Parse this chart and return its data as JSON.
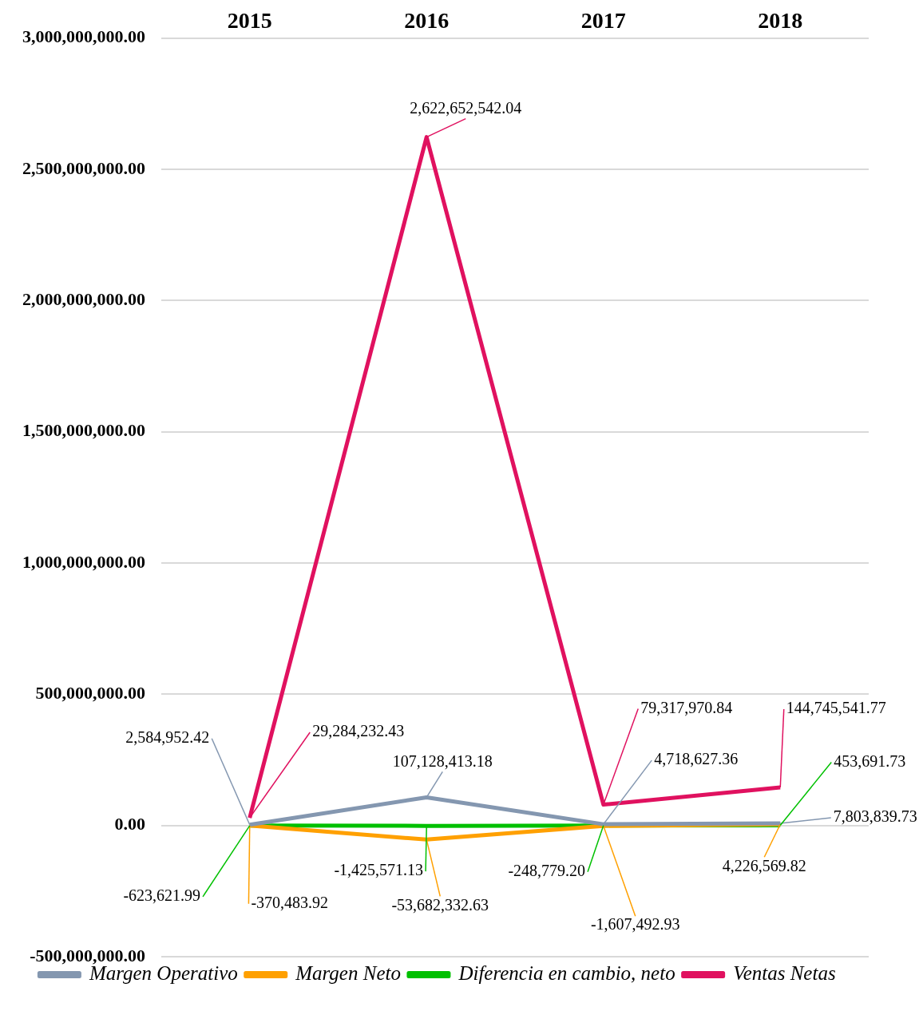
{
  "chart_data": {
    "type": "line",
    "categories": [
      "2015",
      "2016",
      "2017",
      "2018"
    ],
    "series": [
      {
        "name": "Margen Operativo",
        "color": "#8497b0",
        "values": [
          2584952.42,
          107128413.18,
          4718627.36,
          7803839.73
        ],
        "value_labels": [
          "2,584,952.42",
          "107,128,413.18",
          "4,718,627.36",
          "7,803,839.73"
        ]
      },
      {
        "name": "Margen Neto",
        "color": "#ffa000",
        "values": [
          -370483.92,
          -53682332.63,
          -1607492.93,
          4226569.82
        ],
        "value_labels": [
          "-370,483.92",
          "-53,682,332.63",
          "-1,607,492.93",
          "4,226,569.82"
        ]
      },
      {
        "name": "Diferencia en cambio, neto",
        "color": "#00c000",
        "values": [
          -623621.99,
          -1425571.13,
          -248779.2,
          453691.73
        ],
        "value_labels": [
          "-623,621.99",
          "-1,425,571.13",
          "-248,779.20",
          "453,691.73"
        ]
      },
      {
        "name": "Ventas Netas",
        "color": "#e0115f",
        "values": [
          29284232.43,
          2622652542.04,
          79317970.84,
          144745541.77
        ],
        "value_labels": [
          "29,284,232.43",
          "2,622,652,542.04",
          "79,317,970.84",
          "144,745,541.77"
        ]
      }
    ],
    "ylim": [
      -500000000,
      3000000000
    ],
    "yticks": [
      {
        "value": -500000000,
        "label": "-500,000,000.00"
      },
      {
        "value": 0,
        "label": "0.00"
      },
      {
        "value": 500000000,
        "label": "500,000,000.00"
      },
      {
        "value": 1000000000,
        "label": "1,000,000,000.00"
      },
      {
        "value": 1500000000,
        "label": "1,500,000,000.00"
      },
      {
        "value": 2000000000,
        "label": "2,000,000,000.00"
      },
      {
        "value": 2500000000,
        "label": "2,500,000,000.00"
      },
      {
        "value": 3000000000,
        "label": "3,000,000,000.00"
      }
    ],
    "grid": "y",
    "legend": "bottom",
    "marker": "none",
    "line_style": "solid"
  }
}
